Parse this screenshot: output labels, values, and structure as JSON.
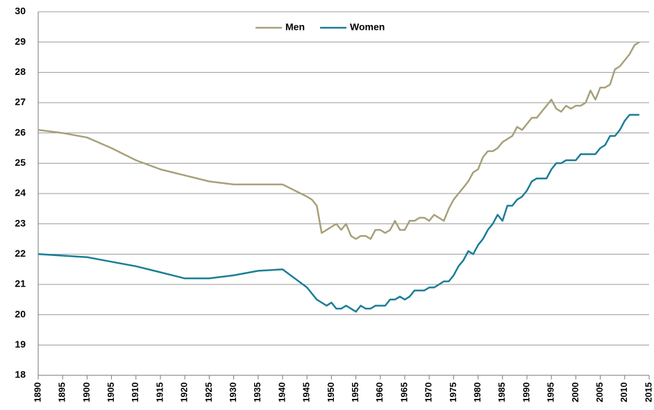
{
  "chart_data": {
    "type": "line",
    "x": [
      1890,
      1895,
      1900,
      1905,
      1910,
      1915,
      1920,
      1925,
      1930,
      1935,
      1940,
      1945,
      1946,
      1947,
      1948,
      1949,
      1950,
      1951,
      1952,
      1953,
      1954,
      1955,
      1956,
      1957,
      1958,
      1959,
      1960,
      1961,
      1962,
      1963,
      1964,
      1965,
      1966,
      1967,
      1968,
      1969,
      1970,
      1971,
      1972,
      1973,
      1974,
      1975,
      1976,
      1977,
      1978,
      1979,
      1980,
      1981,
      1982,
      1983,
      1984,
      1985,
      1986,
      1987,
      1988,
      1989,
      1990,
      1991,
      1992,
      1993,
      1994,
      1995,
      1996,
      1997,
      1998,
      1999,
      2000,
      2001,
      2002,
      2003,
      2004,
      2005,
      2006,
      2007,
      2008,
      2009,
      2010,
      2011,
      2012,
      2013
    ],
    "series": [
      {
        "name": "Men",
        "color": "#a8a07a",
        "values": [
          26.1,
          26.0,
          25.85,
          25.5,
          25.1,
          24.8,
          24.6,
          24.4,
          24.3,
          24.3,
          24.3,
          23.9,
          23.8,
          23.6,
          22.7,
          22.8,
          22.9,
          23.0,
          22.8,
          23.0,
          22.6,
          22.5,
          22.6,
          22.6,
          22.5,
          22.8,
          22.8,
          22.7,
          22.8,
          23.1,
          22.8,
          22.8,
          23.1,
          23.1,
          23.2,
          23.2,
          23.1,
          23.3,
          23.2,
          23.1,
          23.5,
          23.8,
          24.0,
          24.2,
          24.4,
          24.7,
          24.8,
          25.2,
          25.4,
          25.4,
          25.5,
          25.7,
          25.8,
          25.9,
          26.2,
          26.1,
          26.3,
          26.5,
          26.5,
          26.7,
          26.9,
          27.1,
          26.8,
          26.7,
          26.9,
          26.8,
          26.9,
          26.9,
          27.0,
          27.4,
          27.1,
          27.5,
          27.5,
          27.6,
          28.1,
          28.2,
          28.4,
          28.6,
          28.9,
          29.0
        ]
      },
      {
        "name": "Women",
        "color": "#1b7d96",
        "values": [
          22.0,
          21.95,
          21.9,
          21.75,
          21.6,
          21.4,
          21.2,
          21.2,
          21.3,
          21.45,
          21.5,
          20.9,
          20.7,
          20.5,
          20.4,
          20.3,
          20.4,
          20.2,
          20.2,
          20.3,
          20.2,
          20.1,
          20.3,
          20.2,
          20.2,
          20.3,
          20.3,
          20.3,
          20.5,
          20.5,
          20.6,
          20.5,
          20.6,
          20.8,
          20.8,
          20.8,
          20.9,
          20.9,
          21.0,
          21.1,
          21.1,
          21.3,
          21.6,
          21.8,
          22.1,
          22.0,
          22.3,
          22.5,
          22.8,
          23.0,
          23.3,
          23.1,
          23.6,
          23.6,
          23.8,
          23.9,
          24.1,
          24.4,
          24.5,
          24.5,
          24.5,
          24.8,
          25.0,
          25.0,
          25.1,
          25.1,
          25.1,
          25.3,
          25.3,
          25.3,
          25.3,
          25.5,
          25.6,
          25.9,
          25.9,
          26.1,
          26.4,
          26.6,
          26.6,
          26.6
        ]
      }
    ],
    "xlim": [
      1890,
      2015
    ],
    "xticks": [
      1890,
      1895,
      1900,
      1905,
      1910,
      1915,
      1920,
      1925,
      1930,
      1935,
      1940,
      1945,
      1950,
      1955,
      1960,
      1965,
      1970,
      1975,
      1980,
      1985,
      1990,
      1995,
      2000,
      2005,
      2010,
      2015
    ],
    "ylim": [
      18,
      30
    ],
    "yticks": [
      18,
      19,
      20,
      21,
      22,
      23,
      24,
      25,
      26,
      27,
      28,
      29,
      30
    ],
    "grid": true,
    "legend": "top"
  }
}
